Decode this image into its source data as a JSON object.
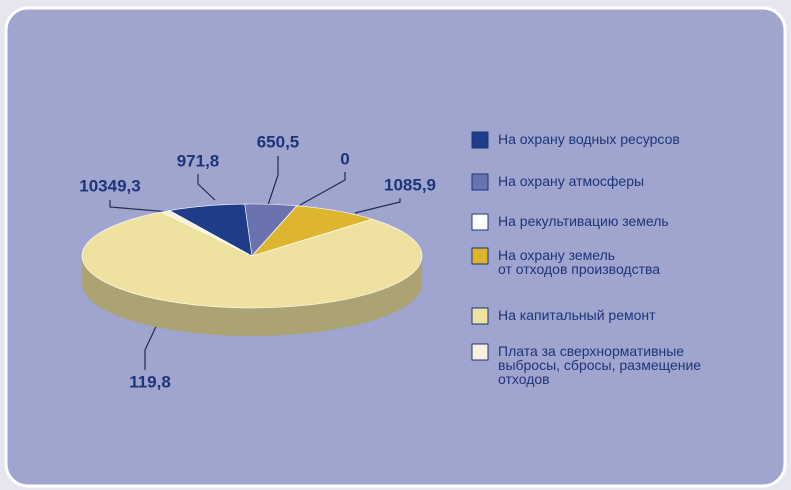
{
  "chart_data": {
    "type": "pie3d",
    "categories": [
      [
        "На охрану водных ресурсов"
      ],
      [
        "На охрану атмосферы"
      ],
      [
        "На рекультивацию земель"
      ],
      [
        "На охрану земель",
        "от отходов производства"
      ],
      [
        "На капитальный ремонт"
      ],
      [
        "Плата за сверхнормативные",
        "выбросы, сбросы, размещение",
        "отходов"
      ]
    ],
    "values": [
      971.8,
      650.5,
      0,
      1085.9,
      10349.3,
      119.8
    ],
    "value_labels": [
      "971,8",
      "650,5",
      "0",
      "1085,9",
      "10349,3",
      "119,8"
    ],
    "colors": [
      "#1f3c88",
      "#6a72b0",
      "#ffffff",
      "#ddb52e",
      "#efe2a0",
      "#f6f1da"
    ],
    "legend": "right"
  }
}
